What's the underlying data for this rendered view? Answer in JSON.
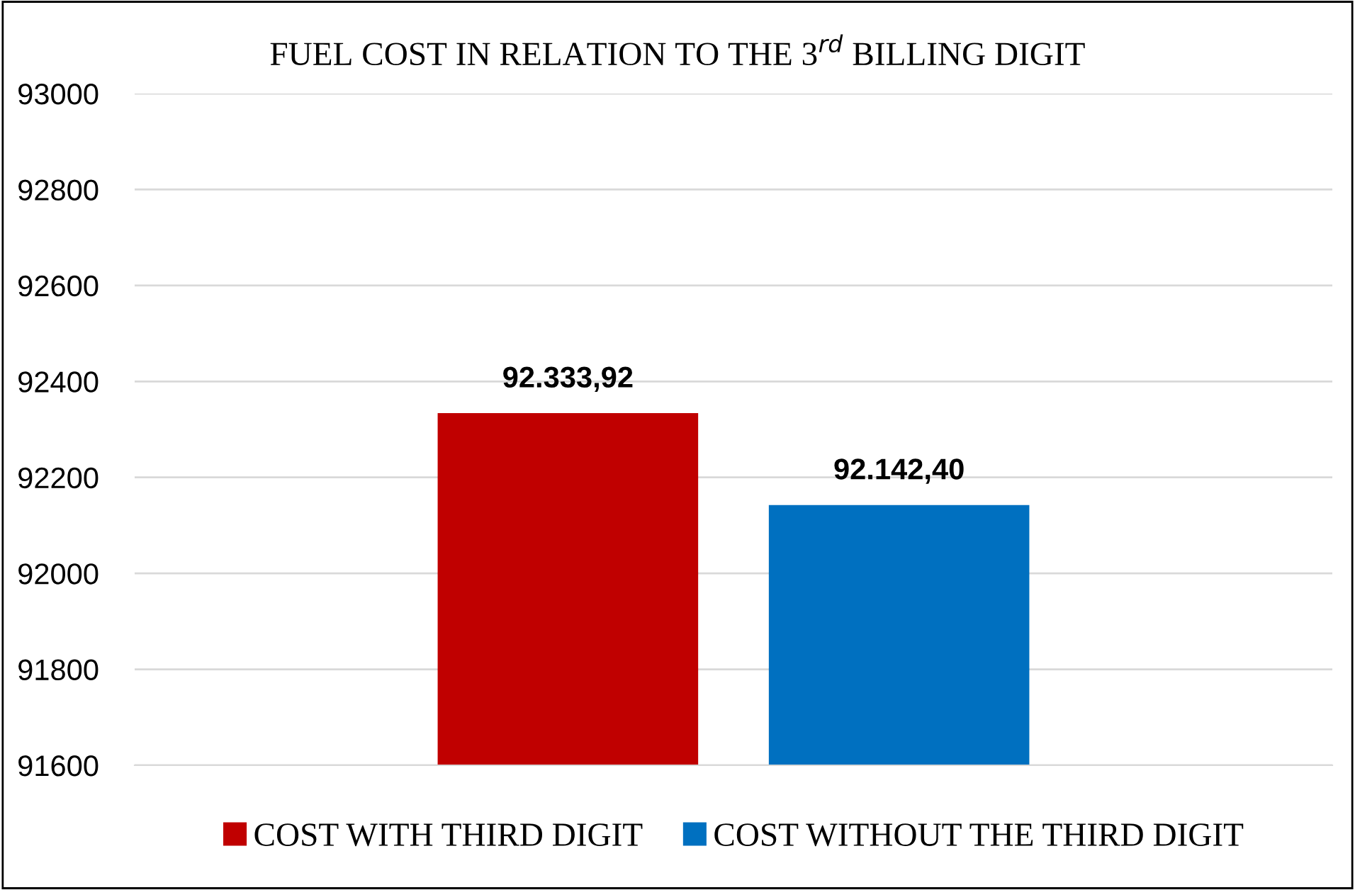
{
  "chart_data": {
    "type": "bar",
    "title": "FUEL COST IN RELATION TO THE 3$^{rd}$ BILLING DIGIT",
    "categories": [
      null
    ],
    "series": [
      {
        "name": "COST WITH THIRD DIGIT",
        "color": "#c00000",
        "values": [
          92333.92
        ],
        "value_labels": [
          "92.333,92"
        ]
      },
      {
        "name": "COST WITHOUT THE THIRD DIGIT",
        "color": "#0070c0",
        "values": [
          92142.4
        ],
        "value_labels": [
          "92.142,40"
        ]
      }
    ],
    "ylim": [
      91600,
      93000
    ],
    "yticks": [
      91600,
      91800,
      92000,
      92200,
      92400,
      92600,
      92800,
      93000
    ],
    "grid": "y",
    "legend": "bottom"
  }
}
